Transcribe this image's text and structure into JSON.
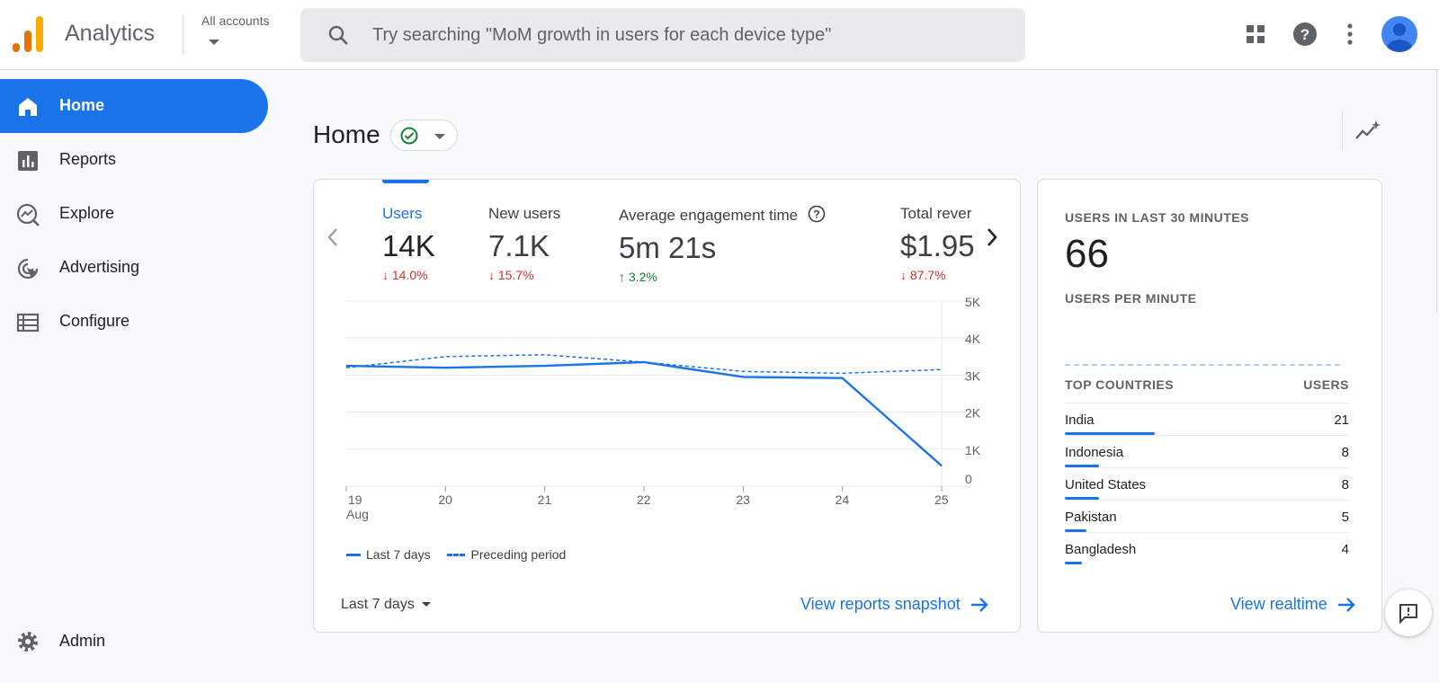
{
  "app": {
    "title": "Analytics",
    "account_label": "All accounts"
  },
  "search": {
    "placeholder": "Try searching \"MoM growth in users for each device type\""
  },
  "topbar_icons": [
    "apps-grid-icon",
    "help-icon",
    "more-vert-icon",
    "account-avatar-icon"
  ],
  "nav": {
    "items": [
      {
        "label": "Home",
        "icon": "home-icon",
        "active": true
      },
      {
        "label": "Reports",
        "icon": "bar-chart-icon"
      },
      {
        "label": "Explore",
        "icon": "explore-icon"
      },
      {
        "label": "Advertising",
        "icon": "advertising-icon"
      },
      {
        "label": "Configure",
        "icon": "configure-list-icon"
      }
    ],
    "admin_label": "Admin"
  },
  "page": {
    "title": "Home"
  },
  "metrics": [
    {
      "label": "Users",
      "value": "14K",
      "delta": "14.0%",
      "direction": "down"
    },
    {
      "label": "New users",
      "value": "7.1K",
      "delta": "15.7%",
      "direction": "down"
    },
    {
      "label": "Average engagement time",
      "value": "5m 21s",
      "delta": "3.2%",
      "direction": "up"
    },
    {
      "label": "Total rever",
      "value": "$1.95",
      "delta": "87.7%",
      "direction": "down"
    }
  ],
  "chart_data": {
    "type": "line",
    "x": [
      "19",
      "20",
      "21",
      "22",
      "23",
      "24",
      "25"
    ],
    "x_sublabel": "Aug",
    "y_ticks": [
      "0",
      "1K",
      "2K",
      "3K",
      "4K",
      "5K"
    ],
    "ylim": [
      0,
      5000
    ],
    "series": [
      {
        "name": "Last 7 days",
        "style": "solid",
        "values": [
          3250,
          3200,
          3250,
          3350,
          2950,
          2920,
          550
        ]
      },
      {
        "name": "Preceding period",
        "style": "dashed",
        "values": [
          3200,
          3500,
          3550,
          3350,
          3100,
          3050,
          3150
        ]
      }
    ],
    "color": "#1a73e8"
  },
  "card_footer": {
    "range": "Last 7 days",
    "link": "View reports snapshot"
  },
  "realtime": {
    "heading": "USERS IN LAST 30 MINUTES",
    "value": "66",
    "per_minute": "USERS PER MINUTE",
    "countries_heading": "TOP COUNTRIES",
    "users_heading": "USERS",
    "countries": [
      {
        "name": "India",
        "users": "21",
        "fraction": 1.0
      },
      {
        "name": "Indonesia",
        "users": "8",
        "fraction": 0.381
      },
      {
        "name": "United States",
        "users": "8",
        "fraction": 0.381
      },
      {
        "name": "Pakistan",
        "users": "5",
        "fraction": 0.238
      },
      {
        "name": "Bangladesh",
        "users": "4",
        "fraction": 0.19
      }
    ],
    "link": "View realtime"
  },
  "colors": {
    "accent": "#1a73e8",
    "down": "#d93025",
    "up": "#188038"
  }
}
